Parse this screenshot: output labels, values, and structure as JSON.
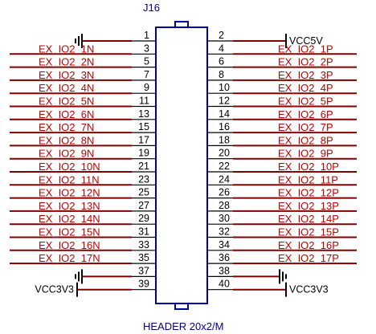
{
  "component": {
    "designator": "J16",
    "value": "HEADER 20x2/M"
  },
  "colors": {
    "wire": "#800000",
    "label": "#c00000",
    "body": "#0000a0",
    "text": "#000000",
    "ref": "#000080"
  },
  "pins": {
    "left": [
      {
        "num": "1",
        "net": "",
        "power": "gnd"
      },
      {
        "num": "3",
        "net": "EX_IO2_1N"
      },
      {
        "num": "5",
        "net": "EX_IO2_2N"
      },
      {
        "num": "7",
        "net": "EX_IO2_3N"
      },
      {
        "num": "9",
        "net": "EX_IO2_4N"
      },
      {
        "num": "11",
        "net": "EX_IO2_5N"
      },
      {
        "num": "13",
        "net": "EX_IO2_6N"
      },
      {
        "num": "15",
        "net": "EX_IO2_7N"
      },
      {
        "num": "17",
        "net": "EX_IO2_8N"
      },
      {
        "num": "19",
        "net": "EX_IO2_9N"
      },
      {
        "num": "21",
        "net": "EX_IO2_10N"
      },
      {
        "num": "23",
        "net": "EX_IO2_11N"
      },
      {
        "num": "25",
        "net": "EX_IO2_12N"
      },
      {
        "num": "27",
        "net": "EX_IO2_13N"
      },
      {
        "num": "29",
        "net": "EX_IO2_14N"
      },
      {
        "num": "31",
        "net": "EX_IO2_15N"
      },
      {
        "num": "33",
        "net": "EX_IO2_16N"
      },
      {
        "num": "35",
        "net": "EX_IO2_17N"
      },
      {
        "num": "37",
        "net": "",
        "power": "gnd"
      },
      {
        "num": "39",
        "net": "VCC3V3",
        "power": "vcc"
      }
    ],
    "right": [
      {
        "num": "2",
        "net": "VCC5V",
        "power": "vcc"
      },
      {
        "num": "4",
        "net": "EX_IO2_1P"
      },
      {
        "num": "6",
        "net": "EX_IO2_2P"
      },
      {
        "num": "8",
        "net": "EX_IO2_3P"
      },
      {
        "num": "10",
        "net": "EX_IO2_4P"
      },
      {
        "num": "12",
        "net": "EX_IO2_5P"
      },
      {
        "num": "14",
        "net": "EX_IO2_6P"
      },
      {
        "num": "16",
        "net": "EX_IO2_7P"
      },
      {
        "num": "18",
        "net": "EX_IO2_8P"
      },
      {
        "num": "20",
        "net": "EX_IO2_9P"
      },
      {
        "num": "22",
        "net": "EX_IO2_10P"
      },
      {
        "num": "24",
        "net": "EX_IO2_11P"
      },
      {
        "num": "26",
        "net": "EX_IO2_12P"
      },
      {
        "num": "28",
        "net": "EX_IO2_13P"
      },
      {
        "num": "30",
        "net": "EX_IO2_14P"
      },
      {
        "num": "32",
        "net": "EX_IO2_15P"
      },
      {
        "num": "34",
        "net": "EX_IO2_16P"
      },
      {
        "num": "36",
        "net": "EX_IO2_17P"
      },
      {
        "num": "38",
        "net": "",
        "power": "gnd"
      },
      {
        "num": "40",
        "net": "VCC3V3",
        "power": "vcc"
      }
    ]
  }
}
